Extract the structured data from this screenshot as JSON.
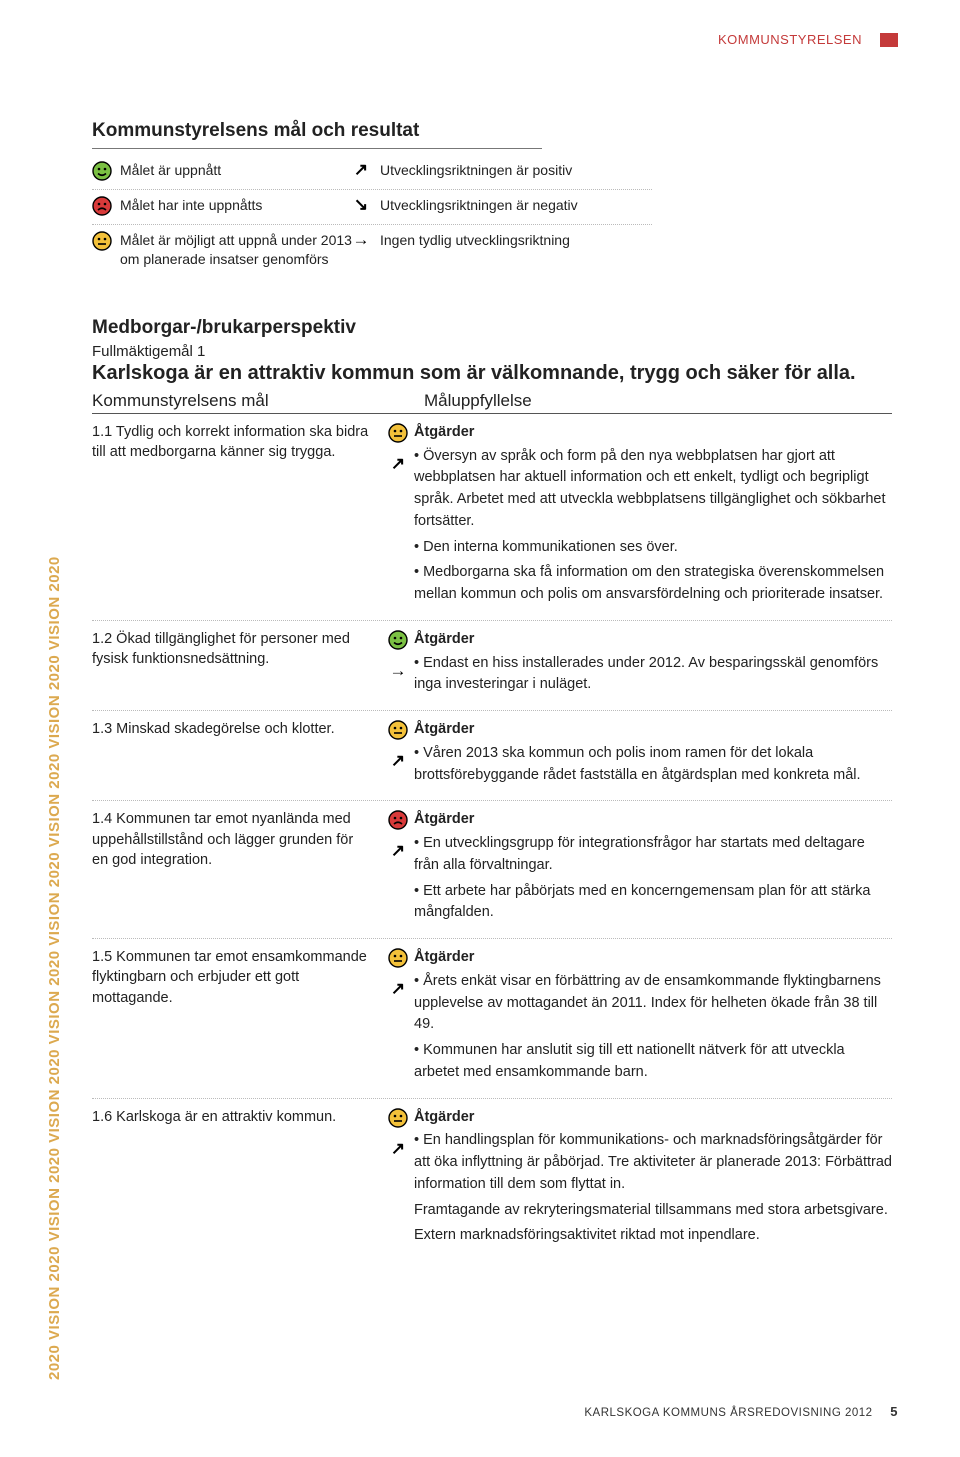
{
  "header": {
    "label": "KOMMUNSTYRELSEN",
    "accent_color": "#c43a3a"
  },
  "legend": {
    "title": "Kommunstyrelsens mål och resultat",
    "rows": [
      {
        "left_icon": "happy",
        "left_text": "Målet är uppnått",
        "right_icon": "arrow-ne",
        "right_text": "Utvecklingsriktningen är positiv"
      },
      {
        "left_icon": "sad",
        "left_text": "Målet har inte uppnåtts",
        "right_icon": "arrow-se",
        "right_text": "Utvecklingsriktningen är negativ"
      },
      {
        "left_icon": "neutral",
        "left_text": "Målet är möjligt att uppnå under 2013 om planerade insatser genomförs",
        "right_icon": "arrow-e",
        "right_text": "Ingen tydlig utvecklingsriktning"
      }
    ]
  },
  "side_text": "2020  VISION 2020  VISION 2020  VISION 2020  VISION 2020  VISION 2020  VISION 2020  VISION 2020  VISION 2020",
  "side_color": "#dca94f",
  "section": {
    "perspective": "Medborgar-/brukarperspektiv",
    "fm_label": "Fullmäktigemål 1",
    "fm_title": "Karlskoga är en attraktiv kommun som är välkomnande, trygg och säker för alla.",
    "col_left": "Kommunstyrelsens mål",
    "col_right": "Måluppfyllelse",
    "goals": [
      {
        "left": "1.1 Tydlig och korrekt information ska bidra till att medborgarna känner sig trygga.",
        "status": "neutral",
        "trend": "arrow-ne",
        "atg_title": "Åtgärder",
        "bullets": [
          "• Översyn av språk och form på den nya webbplatsen har gjort att webbplatsen har aktuell information och ett enkelt, tydligt och begripligt språk. Arbetet med att utveckla webbplatsens tillgänglighet och sökbarhet fortsätter.",
          "• Den interna kommunikationen ses över.",
          "• Medborgarna ska få information om den strategiska överenskommelsen mellan kommun och polis om ansvarsfördelning och prioriterade insatser."
        ]
      },
      {
        "left": "1.2 Ökad tillgänglighet för personer med fysisk funktionsnedsättning.",
        "status": "happy",
        "trend": "arrow-e",
        "atg_title": "Åtgärder",
        "bullets": [
          "• Endast en hiss installerades under 2012. Av besparingsskäl genomförs inga investeringar i nuläget."
        ]
      },
      {
        "left": "1.3 Minskad skadegörelse och klotter.",
        "status": "neutral",
        "trend": "arrow-ne",
        "atg_title": "Åtgärder",
        "bullets": [
          "• Våren 2013 ska kommun och polis inom ramen för det lokala brottsförebyggande rådet fastställa en åtgärdsplan med konkreta mål."
        ]
      },
      {
        "left": "1.4 Kommunen tar emot nyanlända med uppehållstillstånd och lägger grunden för en god integration.",
        "status": "sad",
        "trend": "arrow-ne",
        "atg_title": "Åtgärder",
        "bullets": [
          "• En utvecklingsgrupp för integrationsfrågor har startats med deltagare från alla förvaltningar.",
          "• Ett arbete har påbörjats med en koncerngemensam plan för att stärka mångfalden."
        ]
      },
      {
        "left": "1.5 Kommunen tar emot ensamkommande flyktingbarn och erbjuder ett gott mottagande.",
        "status": "neutral",
        "trend": "arrow-ne",
        "atg_title": "Åtgärder",
        "bullets": [
          "• Årets enkät visar en förbättring av de ensamkommande flyktingbarnens upplevelse av mottagandet än 2011. Index för helheten ökade från 38 till 49.",
          "• Kommunen har anslutit sig till ett nationellt nätverk för att utveckla arbetet med ensamkommande barn."
        ]
      },
      {
        "left": "1.6 Karlskoga är en attraktiv kommun.",
        "status": "neutral",
        "trend": "arrow-ne",
        "atg_title": "Åtgärder",
        "bullets": [
          "• En handlingsplan för kommunikations- och marknadsföringsåtgärder för att öka inflyttning är påbörjad. Tre aktiviteter är planerade 2013: Förbättrad information till dem som flyttat in.",
          "Framtagande av rekryteringsmaterial tillsammans med stora arbetsgivare.",
          "Extern marknadsföringsaktivitet riktad mot inpendlare."
        ]
      }
    ]
  },
  "footer": {
    "text": "KARLSKOGA KOMMUNS ÅRSREDOVISNING 2012",
    "page": "5"
  },
  "smiley_colors": {
    "happy": "#7bc043",
    "neutral": "#f3c13a",
    "sad": "#d83a3a",
    "stroke": "#000000"
  }
}
